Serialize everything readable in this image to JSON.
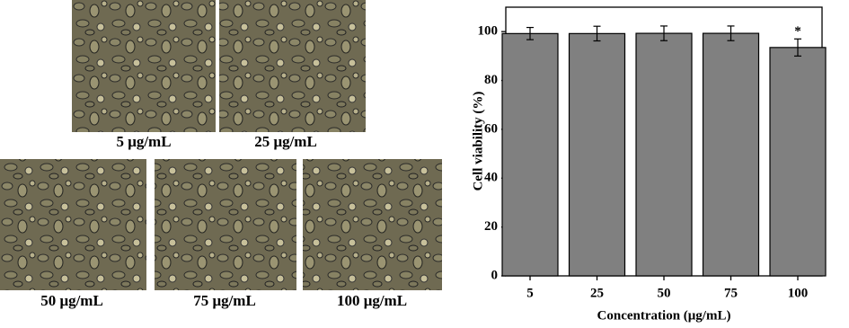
{
  "images": [
    {
      "label": "5 μg/mL"
    },
    {
      "label": "25 μg/mL"
    },
    {
      "label": "50 μg/mL"
    },
    {
      "label": "75 μg/mL"
    },
    {
      "label": "100 μg/mL"
    }
  ],
  "chart_data": {
    "type": "bar",
    "x_label": "Concentration (μg/mL)",
    "y_label": "Cell viability (%)",
    "categories": [
      "5",
      "25",
      "50",
      "75",
      "100"
    ],
    "values": [
      99.2,
      99.2,
      99.3,
      99.3,
      93.5
    ],
    "errors": [
      2.5,
      3,
      3,
      3,
      3.5
    ],
    "annotation": {
      "text": "*",
      "category": 4
    },
    "color": "#808080",
    "ylim": [
      0,
      110
    ],
    "yticks": [
      0,
      20,
      40,
      60,
      80,
      100
    ],
    "grid": false
  }
}
